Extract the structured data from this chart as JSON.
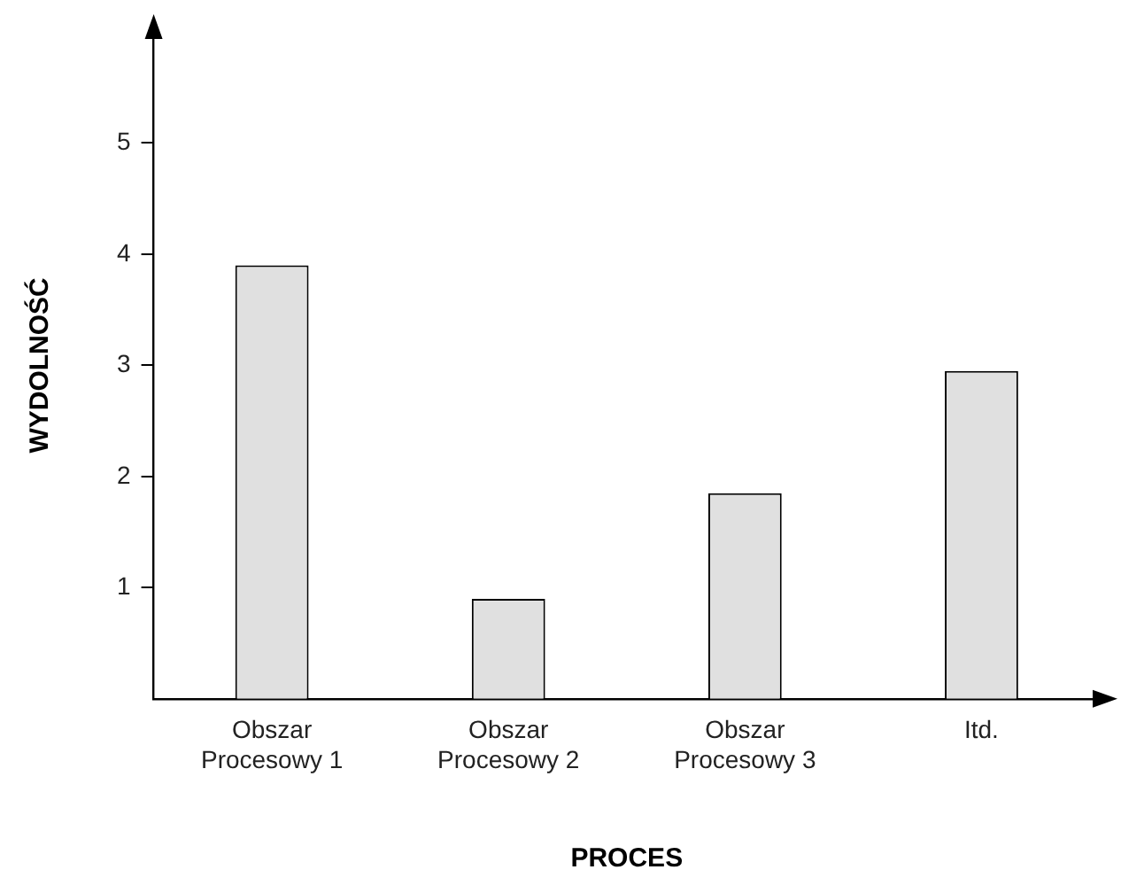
{
  "chart_data": {
    "type": "bar",
    "xlabel": "PROCES",
    "ylabel": "WYDOLNOŚĆ",
    "categories": [
      "Obszar Procesowy 1",
      "Obszar Procesowy 2",
      "Obszar Procesowy 3",
      "Itd."
    ],
    "values": [
      3.9,
      0.9,
      1.85,
      2.95
    ],
    "color": "#e0e0e0",
    "ylim": [
      0,
      6
    ],
    "yticks": [
      1,
      2,
      3,
      4,
      5
    ],
    "grid": false,
    "legend": false
  }
}
